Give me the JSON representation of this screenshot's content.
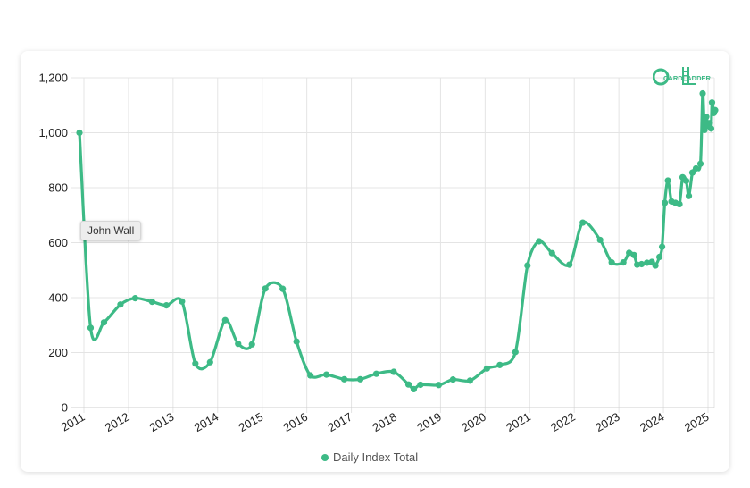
{
  "brand": {
    "logo_text": "CARDLADDER",
    "color": "#3dba86"
  },
  "tooltip": {
    "text": "John Wall"
  },
  "legend": {
    "label": "Daily Index Total",
    "placement": "bottom"
  },
  "chart_data": {
    "type": "line",
    "title": "",
    "xlabel": "",
    "ylabel": "",
    "grid": true,
    "xlim": [
      2010.9,
      2025.15
    ],
    "ylim": [
      0,
      1200
    ],
    "yticks": [
      0,
      200,
      400,
      600,
      800,
      1000,
      1200
    ],
    "ytick_labels": [
      "0",
      "200",
      "400",
      "600",
      "800",
      "1,000",
      "1,200"
    ],
    "xticks": [
      2011,
      2012,
      2013,
      2014,
      2015,
      2016,
      2017,
      2018,
      2019,
      2020,
      2021,
      2022,
      2023,
      2024,
      2025
    ],
    "xtick_labels": [
      "2011",
      "2012",
      "2013",
      "2014",
      "2015",
      "2016",
      "2017",
      "2018",
      "2019",
      "2020",
      "2021",
      "2022",
      "2023",
      "2024",
      "2025"
    ],
    "series": [
      {
        "name": "Daily Index Total",
        "color": "#3dba86",
        "points": [
          [
            2010.9,
            1000
          ],
          [
            2011.15,
            290
          ],
          [
            2011.45,
            310
          ],
          [
            2011.82,
            375
          ],
          [
            2012.15,
            398
          ],
          [
            2012.53,
            385
          ],
          [
            2012.85,
            372
          ],
          [
            2013.2,
            386
          ],
          [
            2013.5,
            160
          ],
          [
            2013.83,
            165
          ],
          [
            2014.17,
            318
          ],
          [
            2014.46,
            232
          ],
          [
            2014.77,
            230
          ],
          [
            2015.07,
            433
          ],
          [
            2015.46,
            432
          ],
          [
            2015.77,
            240
          ],
          [
            2016.08,
            117
          ],
          [
            2016.44,
            120
          ],
          [
            2016.84,
            103
          ],
          [
            2017.2,
            103
          ],
          [
            2017.56,
            123
          ],
          [
            2017.95,
            130
          ],
          [
            2018.28,
            84
          ],
          [
            2018.4,
            67
          ],
          [
            2018.55,
            83
          ],
          [
            2018.96,
            82
          ],
          [
            2019.28,
            102
          ],
          [
            2019.66,
            98
          ],
          [
            2020.04,
            142
          ],
          [
            2020.33,
            155
          ],
          [
            2020.68,
            202
          ],
          [
            2020.95,
            517
          ],
          [
            2021.21,
            605
          ],
          [
            2021.5,
            562
          ],
          [
            2021.89,
            520
          ],
          [
            2022.19,
            673
          ],
          [
            2022.58,
            610
          ],
          [
            2022.84,
            528
          ],
          [
            2023.1,
            528
          ],
          [
            2023.23,
            563
          ],
          [
            2023.34,
            555
          ],
          [
            2023.41,
            520
          ],
          [
            2023.51,
            522
          ],
          [
            2023.63,
            527
          ],
          [
            2023.74,
            530
          ],
          [
            2023.82,
            517
          ],
          [
            2023.91,
            548
          ],
          [
            2023.97,
            585
          ],
          [
            2024.03,
            745
          ],
          [
            2024.1,
            826
          ],
          [
            2024.18,
            750
          ],
          [
            2024.27,
            745
          ],
          [
            2024.36,
            740
          ],
          [
            2024.43,
            838
          ],
          [
            2024.51,
            825
          ],
          [
            2024.57,
            770
          ],
          [
            2024.65,
            855
          ],
          [
            2024.73,
            870
          ],
          [
            2024.83,
            887
          ],
          [
            2024.88,
            1143
          ],
          [
            2024.92,
            1010
          ],
          [
            2024.96,
            1058
          ],
          [
            2025.0,
            1025
          ],
          [
            2025.04,
            1035
          ],
          [
            2025.07,
            1015
          ],
          [
            2025.09,
            1110
          ],
          [
            2025.13,
            1072
          ],
          [
            2025.16,
            1082
          ]
        ]
      }
    ]
  }
}
